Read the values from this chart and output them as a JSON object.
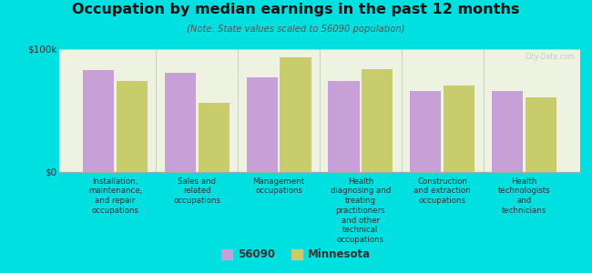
{
  "title": "Occupation by median earnings in the past 12 months",
  "subtitle": "(Note: State values scaled to 56090 population)",
  "background_color": "#00e0e0",
  "plot_bg_color": "#eef2e0",
  "categories": [
    "Installation,\nmaintenance,\nand repair\noccupations",
    "Sales and\nrelated\noccupations",
    "Management\noccupations",
    "Health\ndiagnosing and\ntreating\npractitioners\nand other\ntechnical\noccupations",
    "Construction\nand extraction\noccupations",
    "Health\ntechnologists\nand\ntechnicians"
  ],
  "values_56090": [
    83000,
    81000,
    77000,
    74000,
    66000,
    66000
  ],
  "values_minnesota": [
    74000,
    56000,
    93000,
    84000,
    70000,
    61000
  ],
  "color_56090": "#c8a0d8",
  "color_minnesota": "#c8cc6a",
  "ylim": [
    0,
    100000
  ],
  "ytick_labels": [
    "$0",
    "$100k"
  ],
  "legend_56090": "56090",
  "legend_minnesota": "Minnesota",
  "watermark": "City-Data.com"
}
